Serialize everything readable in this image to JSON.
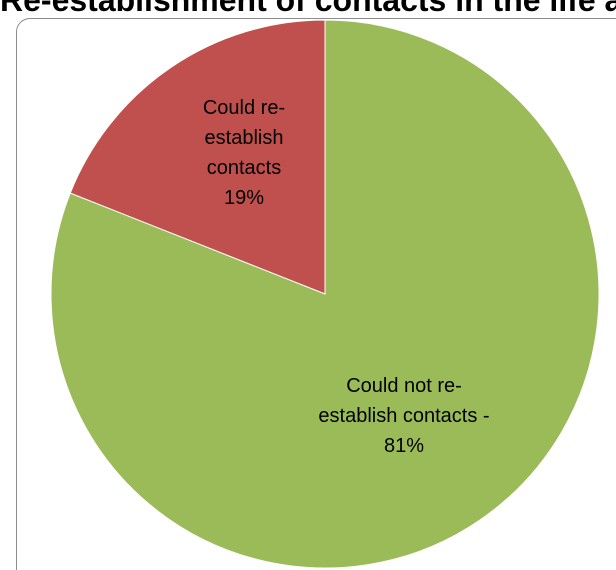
{
  "chart_data": {
    "type": "pie",
    "title": "Re-establishment of contacts in the life after release",
    "slices": [
      {
        "category": "Could re-establish contacts",
        "value": 19,
        "label_lines": [
          "Could re-",
          "establish",
          "contacts",
          "19%"
        ],
        "color": "#c0504d"
      },
      {
        "category": "Could not re-establish contacts",
        "value": 81,
        "label_lines": [
          "Could not re-",
          "establish contacts -",
          "81%"
        ],
        "color": "#9bbb59"
      }
    ],
    "legend": "none"
  }
}
